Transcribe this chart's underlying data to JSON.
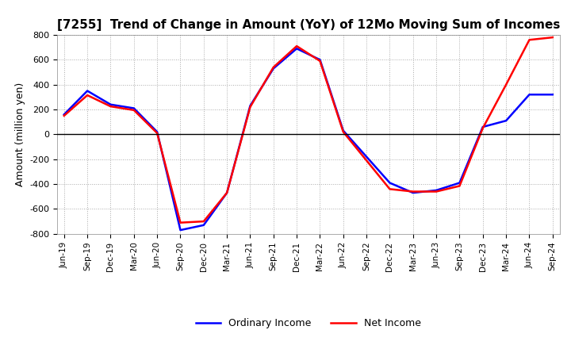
{
  "title": "[7255]  Trend of Change in Amount (YoY) of 12Mo Moving Sum of Incomes",
  "ylabel": "Amount (million yen)",
  "ylim": [
    -800,
    800
  ],
  "yticks": [
    -800,
    -600,
    -400,
    -200,
    0,
    200,
    400,
    600,
    800
  ],
  "legend_labels": [
    "Ordinary Income",
    "Net Income"
  ],
  "ordinary_income_color": "#0000FF",
  "net_income_color": "#FF0000",
  "background_color": "#FFFFFF",
  "grid_color": "#AAAAAA",
  "x_labels": [
    "Jun-19",
    "Sep-19",
    "Dec-19",
    "Mar-20",
    "Jun-20",
    "Sep-20",
    "Dec-20",
    "Mar-21",
    "Jun-21",
    "Sep-21",
    "Dec-21",
    "Mar-22",
    "Jun-22",
    "Sep-22",
    "Dec-22",
    "Mar-23",
    "Jun-23",
    "Sep-23",
    "Dec-23",
    "Mar-24",
    "Jun-24",
    "Sep-24"
  ],
  "ordinary_income": [
    160,
    350,
    240,
    210,
    20,
    -770,
    -730,
    -470,
    230,
    530,
    690,
    600,
    30,
    -180,
    -390,
    -470,
    -450,
    -390,
    60,
    110,
    320,
    320
  ],
  "net_income": [
    150,
    315,
    225,
    195,
    10,
    -710,
    -700,
    -470,
    220,
    540,
    710,
    590,
    20,
    -210,
    -440,
    -460,
    -460,
    -415,
    50,
    400,
    760,
    780
  ]
}
